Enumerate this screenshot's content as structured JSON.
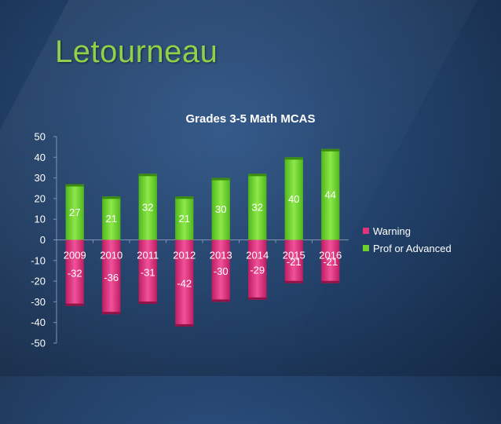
{
  "slide": {
    "title": "Letourneau"
  },
  "chart_data": {
    "type": "bar",
    "title": "Grades 3-5 Math MCAS",
    "categories": [
      "2009",
      "2010",
      "2011",
      "2012",
      "2013",
      "2014",
      "2015",
      "2016"
    ],
    "series": [
      {
        "name": "Warning",
        "values": [
          -32,
          -36,
          -31,
          -42,
          -30,
          -29,
          -21,
          -21
        ],
        "color": "#e0357a"
      },
      {
        "name": "Prof or Advanced",
        "values": [
          27,
          21,
          32,
          21,
          30,
          32,
          40,
          44
        ],
        "color": "#6fcf2e"
      }
    ],
    "ylim": [
      -50,
      50
    ],
    "yticks": [
      50,
      40,
      30,
      20,
      10,
      0,
      -10,
      -20,
      -30,
      -40,
      -50
    ],
    "stacked": true,
    "grid": false,
    "legend": "right"
  }
}
